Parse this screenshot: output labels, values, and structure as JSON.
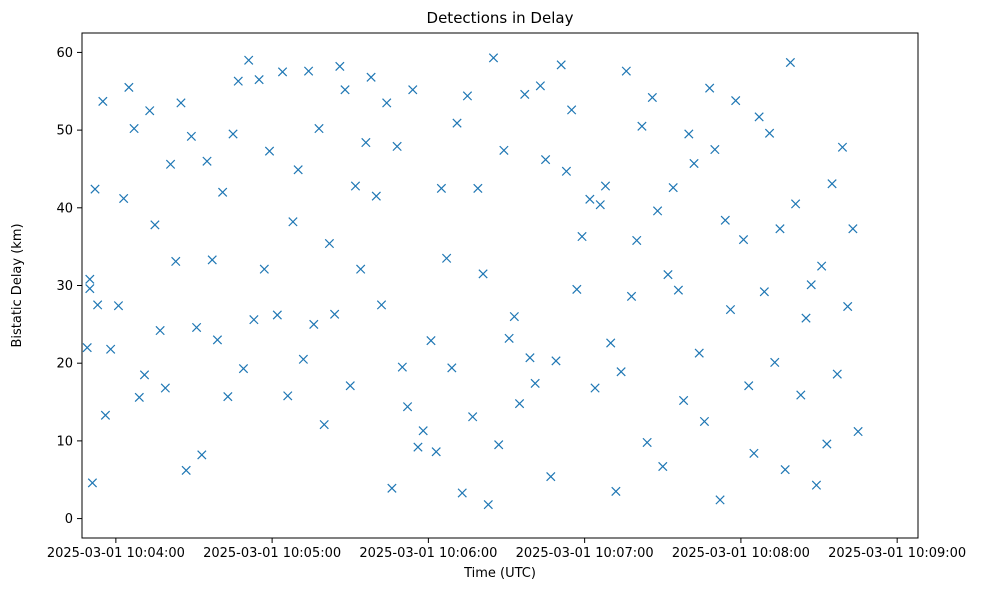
{
  "chart_data": {
    "type": "scatter",
    "title": "Detections in Delay",
    "xlabel": "Time (UTC)",
    "ylabel": "Bistatic Delay (km)",
    "x_range": [
      "2025-03-01 10:03:47",
      "2025-03-01 10:09:08"
    ],
    "ylim": [
      -2.5,
      62.5
    ],
    "x_ticks": [
      "2025-03-01 10:04:00",
      "2025-03-01 10:05:00",
      "2025-03-01 10:06:00",
      "2025-03-01 10:07:00",
      "2025-03-01 10:08:00",
      "2025-03-01 10:09:00"
    ],
    "y_ticks": [
      0,
      10,
      20,
      30,
      40,
      50,
      60
    ],
    "grid": false,
    "legend": "none",
    "marker": "x",
    "color": "#1f77b4",
    "series": [
      {
        "x": [
          "2025-03-01 10:03:49",
          "2025-03-01 10:03:50",
          "2025-03-01 10:03:51",
          "2025-03-01 10:03:50",
          "2025-03-01 10:03:52",
          "2025-03-01 10:03:53",
          "2025-03-01 10:03:55",
          "2025-03-01 10:03:56",
          "2025-03-01 10:03:58",
          "2025-03-01 10:04:01",
          "2025-03-01 10:04:03",
          "2025-03-01 10:04:05",
          "2025-03-01 10:04:07",
          "2025-03-01 10:04:09",
          "2025-03-01 10:04:11",
          "2025-03-01 10:04:13",
          "2025-03-01 10:04:15",
          "2025-03-01 10:04:17",
          "2025-03-01 10:04:19",
          "2025-03-01 10:04:21",
          "2025-03-01 10:04:23",
          "2025-03-01 10:04:25",
          "2025-03-01 10:04:27",
          "2025-03-01 10:04:29",
          "2025-03-01 10:04:31",
          "2025-03-01 10:04:33",
          "2025-03-01 10:04:35",
          "2025-03-01 10:04:37",
          "2025-03-01 10:04:39",
          "2025-03-01 10:04:41",
          "2025-03-01 10:04:43",
          "2025-03-01 10:04:45",
          "2025-03-01 10:04:47",
          "2025-03-01 10:04:49",
          "2025-03-01 10:04:51",
          "2025-03-01 10:04:53",
          "2025-03-01 10:04:55",
          "2025-03-01 10:04:57",
          "2025-03-01 10:04:59",
          "2025-03-01 10:05:02",
          "2025-03-01 10:05:04",
          "2025-03-01 10:05:06",
          "2025-03-01 10:05:08",
          "2025-03-01 10:05:10",
          "2025-03-01 10:05:12",
          "2025-03-01 10:05:14",
          "2025-03-01 10:05:16",
          "2025-03-01 10:05:18",
          "2025-03-01 10:05:20",
          "2025-03-01 10:05:22",
          "2025-03-01 10:05:24",
          "2025-03-01 10:05:26",
          "2025-03-01 10:05:28",
          "2025-03-01 10:05:30",
          "2025-03-01 10:05:32",
          "2025-03-01 10:05:34",
          "2025-03-01 10:05:36",
          "2025-03-01 10:05:38",
          "2025-03-01 10:05:40",
          "2025-03-01 10:05:42",
          "2025-03-01 10:05:44",
          "2025-03-01 10:05:46",
          "2025-03-01 10:05:48",
          "2025-03-01 10:05:50",
          "2025-03-01 10:05:52",
          "2025-03-01 10:05:54",
          "2025-03-01 10:05:56",
          "2025-03-01 10:05:58",
          "2025-03-01 10:06:01",
          "2025-03-01 10:06:03",
          "2025-03-01 10:06:05",
          "2025-03-01 10:06:07",
          "2025-03-01 10:06:09",
          "2025-03-01 10:06:11",
          "2025-03-01 10:06:13",
          "2025-03-01 10:06:15",
          "2025-03-01 10:06:17",
          "2025-03-01 10:06:19",
          "2025-03-01 10:06:21",
          "2025-03-01 10:06:23",
          "2025-03-01 10:06:25",
          "2025-03-01 10:06:27",
          "2025-03-01 10:06:29",
          "2025-03-01 10:06:31",
          "2025-03-01 10:06:33",
          "2025-03-01 10:06:35",
          "2025-03-01 10:06:37",
          "2025-03-01 10:06:39",
          "2025-03-01 10:06:41",
          "2025-03-01 10:06:43",
          "2025-03-01 10:06:45",
          "2025-03-01 10:06:47",
          "2025-03-01 10:06:49",
          "2025-03-01 10:06:51",
          "2025-03-01 10:06:53",
          "2025-03-01 10:06:55",
          "2025-03-01 10:06:57",
          "2025-03-01 10:06:59",
          "2025-03-01 10:07:02",
          "2025-03-01 10:07:04",
          "2025-03-01 10:07:06",
          "2025-03-01 10:07:08",
          "2025-03-01 10:07:10",
          "2025-03-01 10:07:12",
          "2025-03-01 10:07:14",
          "2025-03-01 10:07:16",
          "2025-03-01 10:07:18",
          "2025-03-01 10:07:20",
          "2025-03-01 10:07:22",
          "2025-03-01 10:07:24",
          "2025-03-01 10:07:26",
          "2025-03-01 10:07:28",
          "2025-03-01 10:07:30",
          "2025-03-01 10:07:32",
          "2025-03-01 10:07:34",
          "2025-03-01 10:07:36",
          "2025-03-01 10:07:38",
          "2025-03-01 10:07:40",
          "2025-03-01 10:07:42",
          "2025-03-01 10:07:44",
          "2025-03-01 10:07:46",
          "2025-03-01 10:07:48",
          "2025-03-01 10:07:50",
          "2025-03-01 10:07:52",
          "2025-03-01 10:07:54",
          "2025-03-01 10:07:56",
          "2025-03-01 10:07:58",
          "2025-03-01 10:08:01",
          "2025-03-01 10:08:03",
          "2025-03-01 10:08:05",
          "2025-03-01 10:08:07",
          "2025-03-01 10:08:09",
          "2025-03-01 10:08:11",
          "2025-03-01 10:08:13",
          "2025-03-01 10:08:15",
          "2025-03-01 10:08:17",
          "2025-03-01 10:08:19",
          "2025-03-01 10:08:21",
          "2025-03-01 10:08:23",
          "2025-03-01 10:08:25",
          "2025-03-01 10:08:27",
          "2025-03-01 10:08:29",
          "2025-03-01 10:08:31",
          "2025-03-01 10:08:33",
          "2025-03-01 10:08:35",
          "2025-03-01 10:08:37",
          "2025-03-01 10:08:39",
          "2025-03-01 10:08:41",
          "2025-03-01 10:08:43",
          "2025-03-01 10:08:45"
        ],
        "y": [
          22,
          30.8,
          4.6,
          29.6,
          42.4,
          27.5,
          53.7,
          13.3,
          21.8,
          27.4,
          41.2,
          55.5,
          50.2,
          15.6,
          18.5,
          52.5,
          37.8,
          24.2,
          16.8,
          45.6,
          33.1,
          53.5,
          6.2,
          49.2,
          24.6,
          8.2,
          46,
          33.3,
          23,
          42,
          15.7,
          49.5,
          56.3,
          19.3,
          59,
          25.6,
          56.5,
          32.1,
          47.3,
          26.2,
          57.5,
          15.8,
          38.2,
          44.9,
          20.5,
          57.6,
          25,
          50.2,
          12.1,
          35.4,
          26.3,
          58.2,
          55.2,
          17.1,
          42.8,
          32.1,
          48.4,
          56.8,
          41.5,
          27.5,
          53.5,
          3.9,
          47.9,
          19.5,
          14.4,
          55.2,
          9.2,
          11.3,
          22.9,
          8.6,
          42.5,
          33.5,
          19.4,
          50.9,
          3.3,
          54.4,
          13.1,
          42.5,
          31.5,
          1.8,
          59.3,
          9.5,
          47.4,
          23.2,
          26,
          14.8,
          54.6,
          20.7,
          17.4,
          55.7,
          46.2,
          5.4,
          20.3,
          58.4,
          44.7,
          52.6,
          29.5,
          36.3,
          41.1,
          16.8,
          40.4,
          42.8,
          22.6,
          3.5,
          18.9,
          57.6,
          28.6,
          35.8,
          50.5,
          9.8,
          54.2,
          39.6,
          6.7,
          31.4,
          42.6,
          29.4,
          15.2,
          49.5,
          45.7,
          21.3,
          12.5,
          55.4,
          47.5,
          2.4,
          38.4,
          26.9,
          53.8,
          35.9,
          17.1,
          8.4,
          51.7,
          29.2,
          49.6,
          20.1,
          37.3,
          6.3,
          58.7,
          40.5,
          15.9,
          25.8,
          30.1,
          4.3,
          32.5,
          9.6,
          43.1,
          18.6,
          47.8,
          27.3,
          37.3,
          11.2
        ]
      }
    ]
  }
}
